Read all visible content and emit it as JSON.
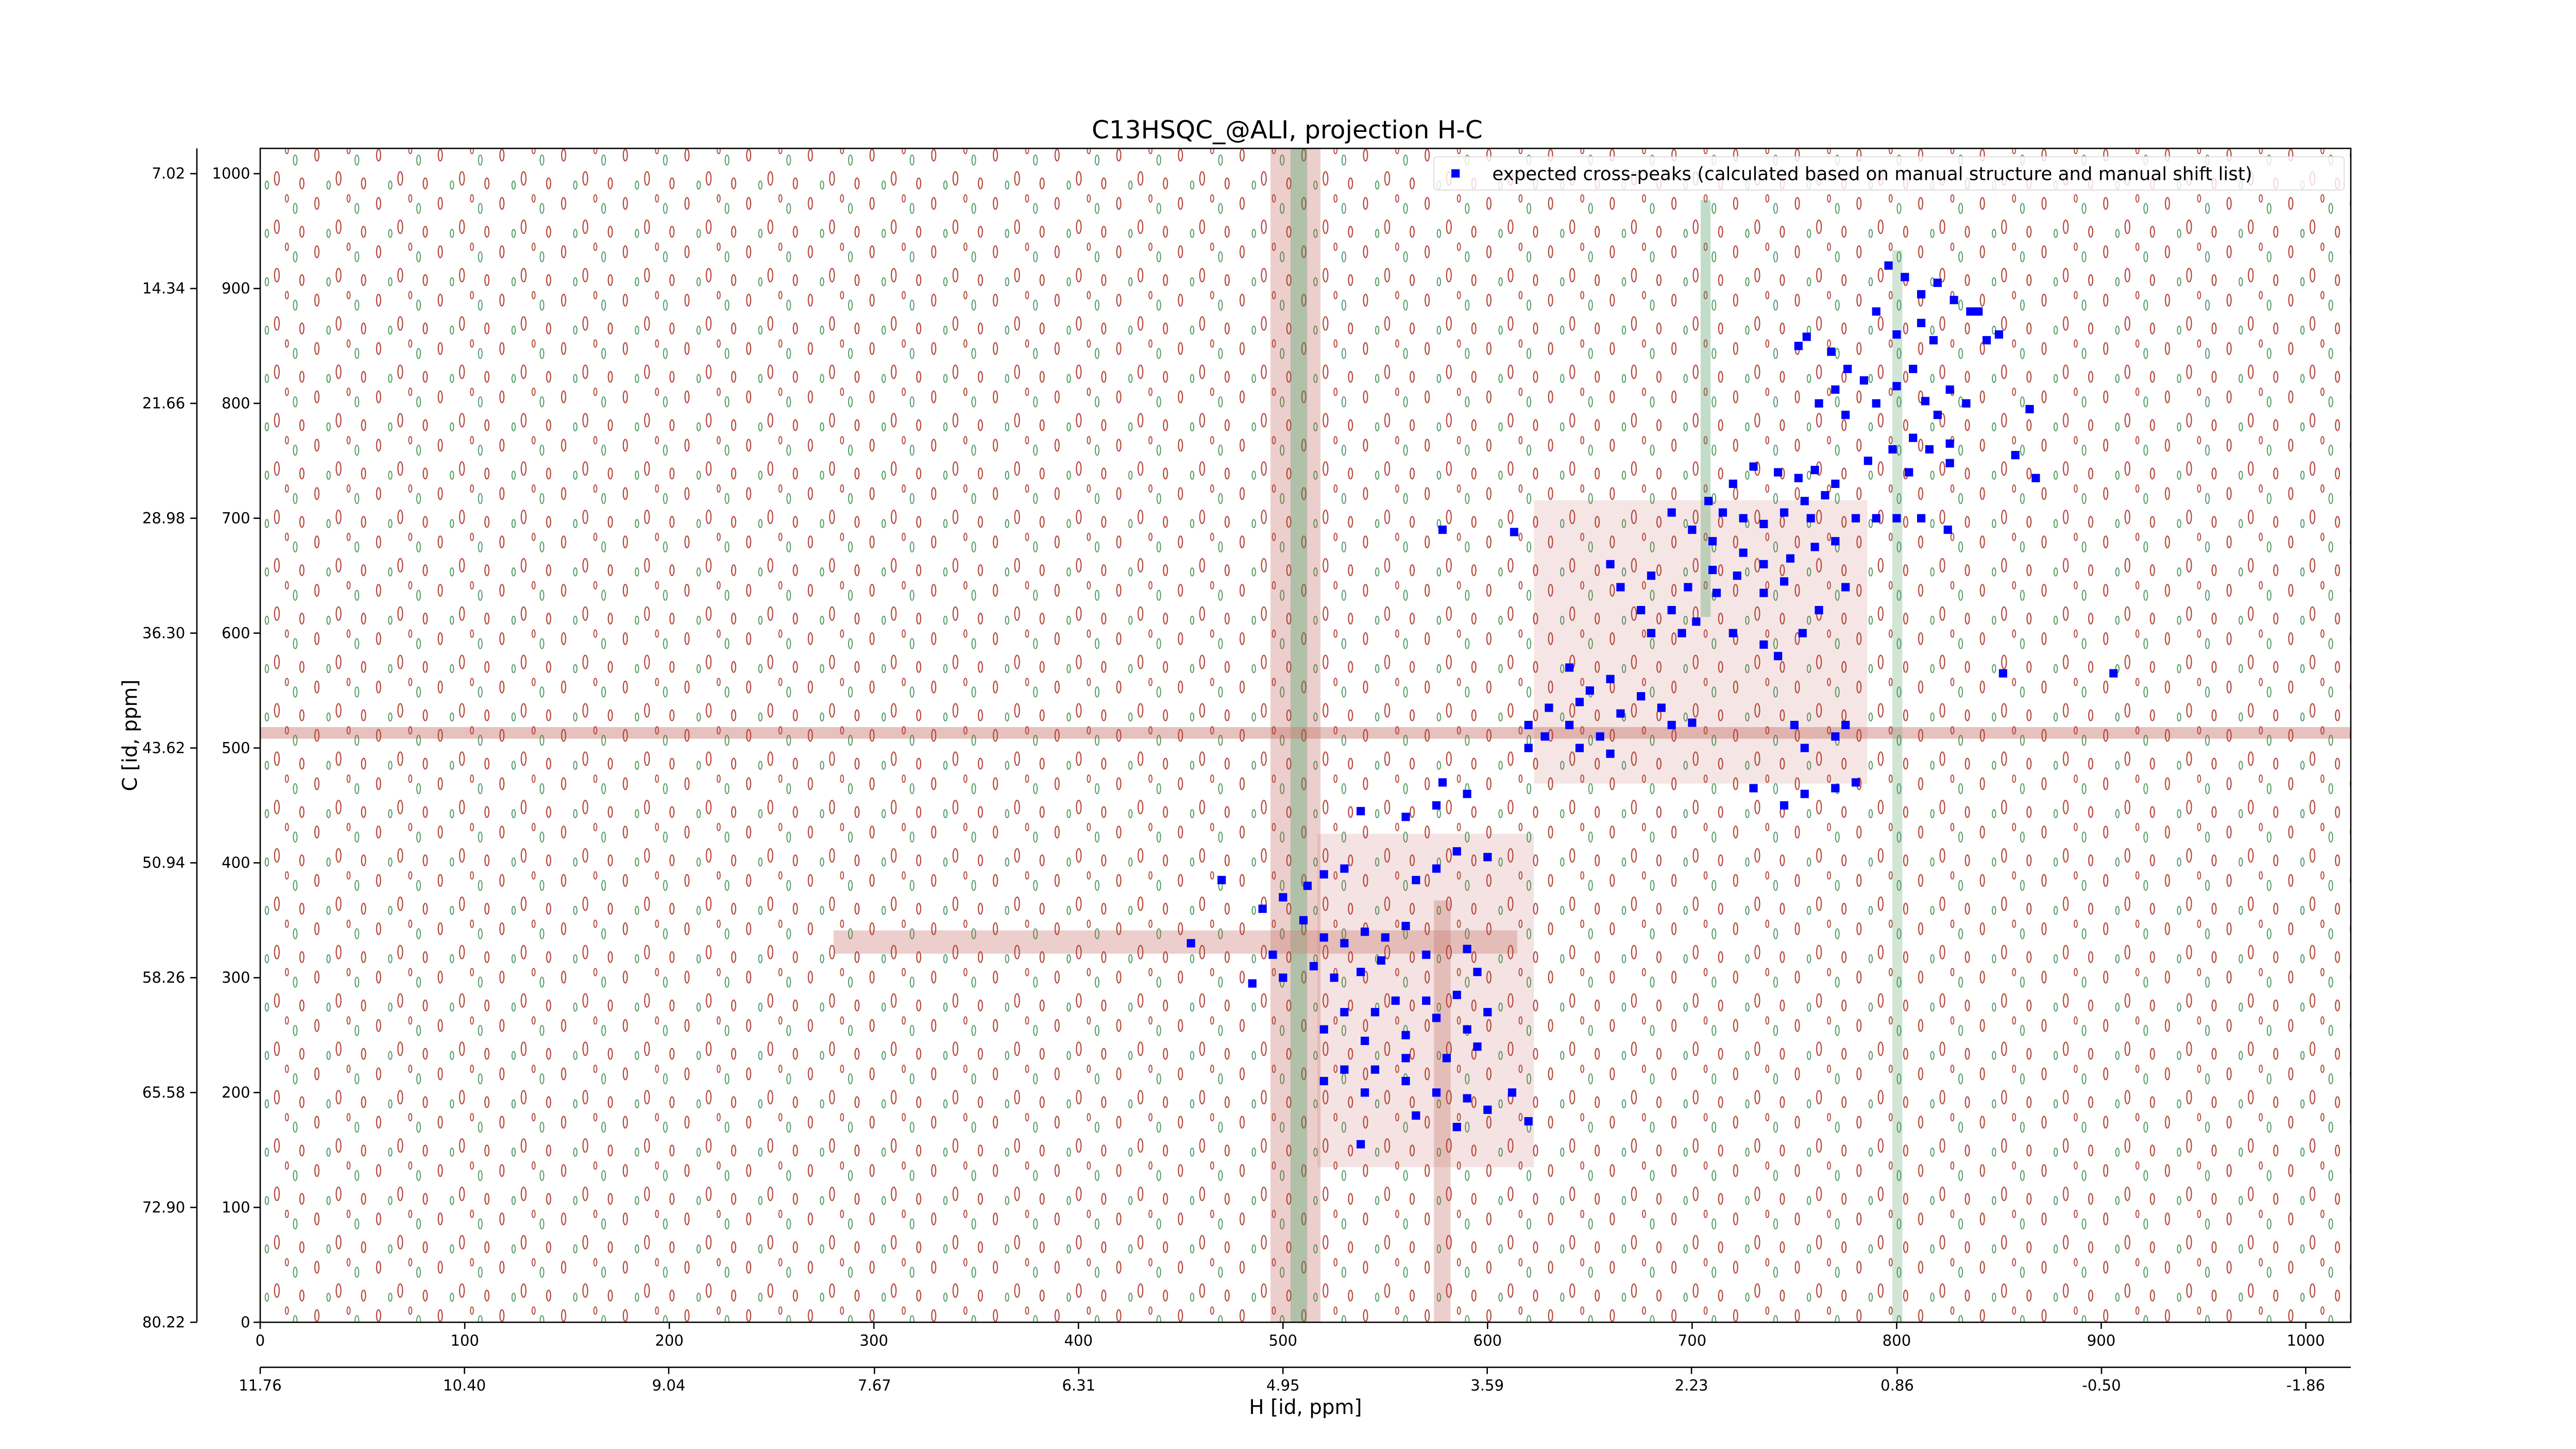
{
  "chart_data": {
    "type": "scatter",
    "title": "C13HSQC_@ALI, projection H-C",
    "xlabel": "H [id, ppm]",
    "ylabel": "C [id, ppm]",
    "xlim": [
      0,
      1022
    ],
    "ylim": [
      0,
      1022
    ],
    "xticks": [
      0,
      100,
      200,
      300,
      400,
      500,
      600,
      700,
      800,
      900,
      1000
    ],
    "yticks": [
      0,
      100,
      200,
      300,
      400,
      500,
      600,
      700,
      800,
      900,
      1000
    ],
    "x2lim": [
      11.76,
      -2.16
    ],
    "x2ticks": [
      11.76,
      {
        "value": 10.4,
        "label": "10.40"
      },
      9.04,
      7.67,
      6.31,
      4.95,
      3.59,
      2.23,
      0.86,
      {
        "value": -0.5,
        "label": "-0.50"
      },
      -1.86
    ],
    "y2lim": [
      80.22,
      5.41
    ],
    "y2ticks": [
      80.22,
      {
        "value": 72.9,
        "label": "72.90"
      },
      65.58,
      58.26,
      50.94,
      43.62,
      {
        "value": 36.3,
        "label": "36.30"
      },
      28.98,
      21.66,
      14.34,
      7.02
    ],
    "legend": "upper right",
    "series": [
      {
        "name": "expected cross-peaks (calculated based on manual structure and manual shift list)",
        "color": "#0000ff",
        "x": [
          796,
          804,
          812,
          820,
          828,
          836,
          812,
          800,
          818,
          790,
          844,
          752,
          756,
          768,
          776,
          784,
          770,
          790,
          800,
          808,
          814,
          820,
          826,
          834,
          762,
          775,
          808,
          816,
          826,
          798,
          786,
          840,
          850,
          806,
          826,
          812,
          825,
          730,
          742,
          752,
          760,
          770,
          720,
          708,
          715,
          725,
          735,
          745,
          755,
          765,
          690,
          700,
          710,
          725,
          735,
          748,
          760,
          745,
          735,
          722,
          710,
          698,
          690,
          702,
          720,
          735,
          742,
          754,
          762,
          775,
          770,
          780,
          660,
          665,
          675,
          680,
          695,
          712,
          680,
          758,
          790,
          800,
          640,
          650,
          660,
          645,
          630,
          620,
          628,
          640,
          655,
          665,
          675,
          685,
          690,
          700,
          645,
          660,
          620,
          770,
          775,
          750,
          755,
          730,
          745,
          755,
          780,
          770,
          852,
          906,
          865,
          858,
          868,
          578,
          613,
          538,
          560,
          575,
          578,
          590,
          585,
          600,
          575,
          565,
          530,
          520,
          512,
          500,
          490,
          470,
          510,
          520,
          530,
          540,
          550,
          560,
          570,
          548,
          538,
          525,
          515,
          500,
          485,
          455,
          495,
          590,
          595,
          585,
          570,
          555,
          545,
          530,
          520,
          540,
          560,
          575,
          590,
          600,
          580,
          560,
          545,
          530,
          520,
          560,
          575,
          590,
          600,
          612,
          620,
          585,
          565,
          540,
          595,
          538
        ],
        "y": [
          920,
          910,
          895,
          905,
          890,
          880,
          870,
          860,
          855,
          880,
          855,
          850,
          858,
          845,
          830,
          820,
          812,
          800,
          815,
          830,
          802,
          790,
          812,
          800,
          800,
          790,
          770,
          760,
          765,
          760,
          750,
          880,
          860,
          740,
          748,
          700,
          690,
          745,
          740,
          735,
          742,
          730,
          730,
          715,
          705,
          700,
          695,
          705,
          715,
          720,
          705,
          690,
          680,
          670,
          660,
          665,
          675,
          645,
          635,
          650,
          655,
          640,
          620,
          610,
          600,
          590,
          580,
          600,
          620,
          640,
          680,
          700,
          660,
          640,
          620,
          600,
          600,
          635,
          650,
          700,
          700,
          700,
          570,
          550,
          560,
          540,
          535,
          520,
          510,
          520,
          510,
          530,
          545,
          535,
          520,
          522,
          500,
          495,
          500,
          510,
          520,
          520,
          500,
          465,
          450,
          460,
          470,
          465,
          565,
          565,
          795,
          755,
          735,
          690,
          688,
          445,
          440,
          450,
          470,
          460,
          410,
          405,
          395,
          385,
          395,
          390,
          380,
          370,
          360,
          385,
          350,
          335,
          330,
          340,
          335,
          345,
          320,
          315,
          305,
          300,
          310,
          300,
          295,
          330,
          320,
          325,
          305,
          285,
          280,
          280,
          270,
          270,
          255,
          245,
          250,
          265,
          255,
          270,
          230,
          230,
          220,
          220,
          210,
          210,
          200,
          195,
          185,
          200,
          175,
          170,
          180,
          200,
          240,
          155
        ]
      }
    ]
  }
}
